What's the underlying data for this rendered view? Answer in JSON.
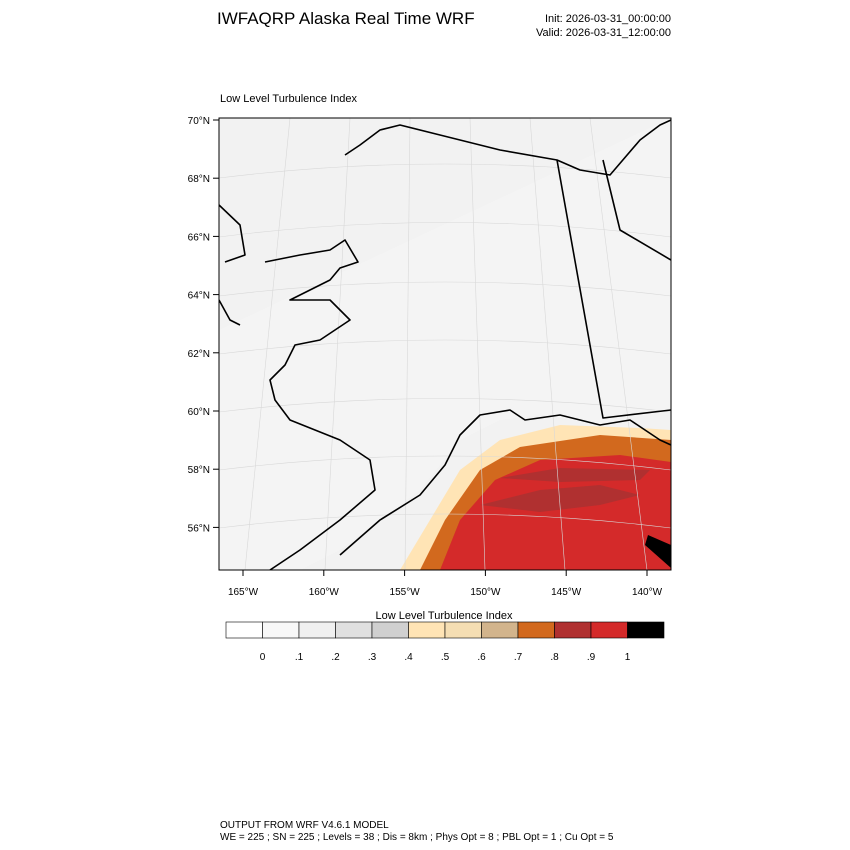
{
  "header": {
    "title": "IWFAQRP Alaska Real Time WRF",
    "init": "Init: 2026-03-31_00:00:00",
    "valid": "Valid: 2026-03-31_12:00:00"
  },
  "map": {
    "subtitle": "Low Level Turbulence Index",
    "lat_labels": [
      "70°N",
      "68°N",
      "66°N",
      "64°N",
      "62°N",
      "60°N",
      "58°N",
      "56°N"
    ],
    "lon_labels": [
      "165°W",
      "160°W",
      "155°W",
      "150°W",
      "145°W",
      "140°W"
    ]
  },
  "colorbar": {
    "title": "Low Level Turbulence Index",
    "colors": [
      "#ffffff",
      "#f8f8f8",
      "#f0f0f0",
      "#e0e0e0",
      "#d0d0d0",
      "#ffe4b5",
      "#f5deb3",
      "#d2b48c",
      "#d2691e",
      "#b03030",
      "#d42a2a",
      "#000000"
    ],
    "labels": [
      "0",
      ".1",
      ".2",
      ".3",
      ".4",
      ".5",
      ".6",
      ".7",
      ".8",
      ".9",
      "1"
    ]
  },
  "footer": {
    "line1": "OUTPUT FROM WRF V4.6.1 MODEL",
    "line2": "WE = 225 ; SN = 225 ; Levels = 38 ; Dis = 8km ; Phys Opt = 8 ; PBL Opt = 1 ; Cu Opt = 5"
  }
}
